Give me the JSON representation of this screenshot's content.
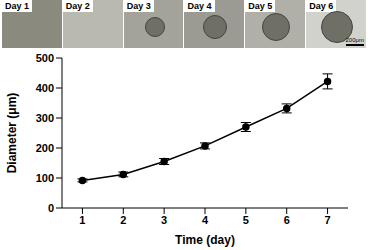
{
  "panels": {
    "labels": [
      "Day 1",
      "Day 2",
      "Day 3",
      "Day 4",
      "Day 5",
      "Day 6"
    ],
    "scale_bar": "200μm"
  },
  "chart_data": {
    "type": "line",
    "x_label": "Time (day)",
    "y_label": "Diameter (μm)",
    "x": [
      1,
      2,
      3,
      4,
      5,
      6,
      7
    ],
    "values": [
      92,
      112,
      155,
      207,
      270,
      332,
      422
    ],
    "errors": [
      5,
      8,
      10,
      10,
      15,
      15,
      25
    ],
    "color": "#000000",
    "marker": "circle",
    "xlim": [
      0.5,
      7.5
    ],
    "xticks": [
      1,
      2,
      3,
      4,
      5,
      6,
      7
    ],
    "ylim": [
      0,
      500
    ],
    "yticks": [
      0,
      100,
      200,
      300,
      400,
      500
    ],
    "grid": false
  }
}
